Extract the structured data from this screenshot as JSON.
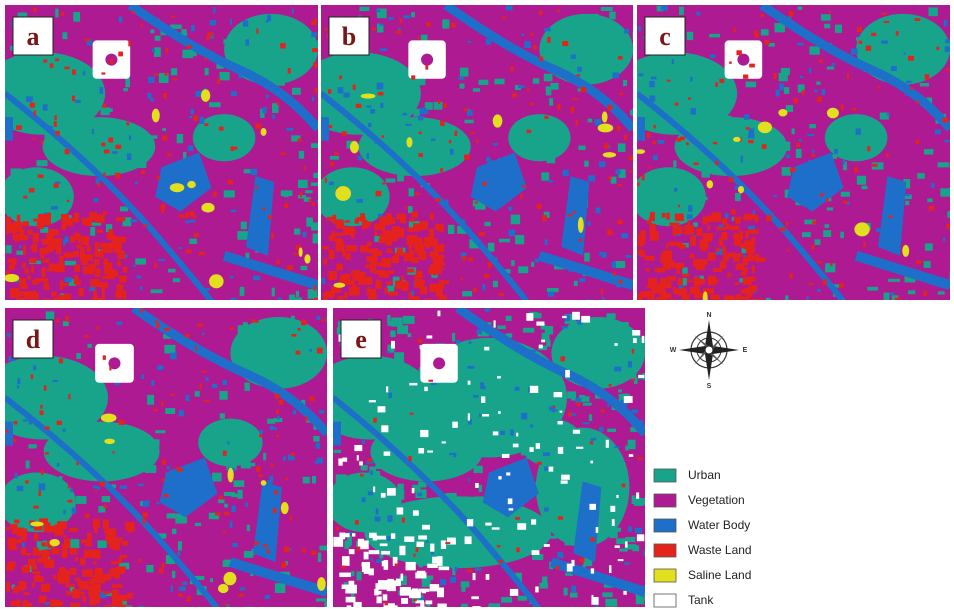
{
  "panels": [
    {
      "label": "a"
    },
    {
      "label": "b"
    },
    {
      "label": "c"
    },
    {
      "label": "d"
    },
    {
      "label": "e"
    }
  ],
  "compass": {
    "n": "N",
    "e": "E",
    "s": "S",
    "w": "W"
  },
  "legend": [
    {
      "label": "Urban",
      "color": "#17a48b"
    },
    {
      "label": "Vegetation",
      "color": "#ad1a92"
    },
    {
      "label": "Water Body",
      "color": "#1e6fca"
    },
    {
      "label": "Waste Land",
      "color": "#e5231d"
    },
    {
      "label": "Saline Land",
      "color": "#e2df1f"
    },
    {
      "label": "Tank",
      "color": "#ffffff"
    }
  ]
}
